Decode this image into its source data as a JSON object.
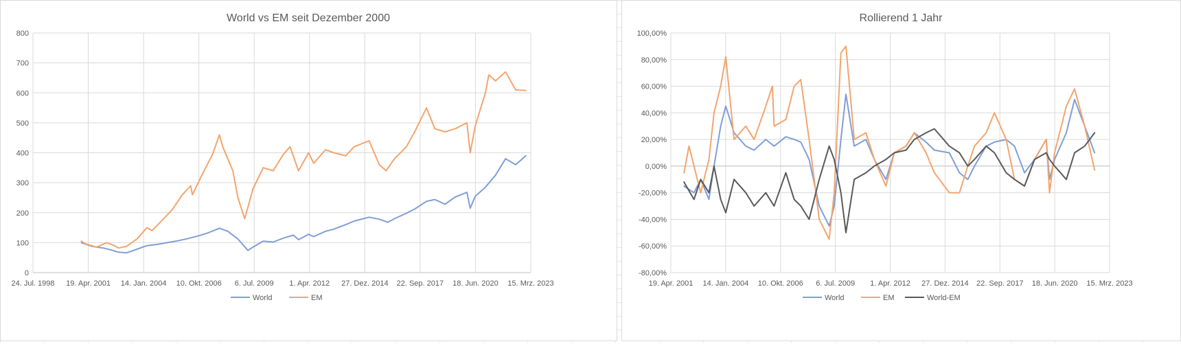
{
  "chart_data": [
    {
      "type": "line",
      "title": "World vs EM seit Dezember 2000",
      "x_tick_labels": [
        "24. Jul. 1998",
        "19. Apr. 2001",
        "14. Jan. 2004",
        "10. Okt. 2006",
        "6. Jul. 2009",
        "1. Apr. 2012",
        "27. Dez. 2014",
        "22. Sep. 2017",
        "18. Jun. 2020",
        "15. Mrz. 2023"
      ],
      "xlim": [
        "1998-07-24",
        "2023-03-15"
      ],
      "y_tick_labels": [
        "0",
        "100",
        "200",
        "300",
        "400",
        "500",
        "600",
        "700",
        "800"
      ],
      "ylim": [
        0,
        800
      ],
      "grid": true,
      "legend_position": "bottom",
      "series": [
        {
          "name": "World",
          "color": "#7f9ed8",
          "x": [
            "2000-12",
            "2001-06",
            "2002-01",
            "2002-06",
            "2002-10",
            "2003-03",
            "2003-09",
            "2004-03",
            "2004-09",
            "2005-03",
            "2005-09",
            "2006-03",
            "2006-09",
            "2007-03",
            "2007-10",
            "2008-03",
            "2008-09",
            "2009-03",
            "2009-06",
            "2009-12",
            "2010-06",
            "2010-12",
            "2011-06",
            "2011-09",
            "2012-03",
            "2012-06",
            "2013-01",
            "2013-06",
            "2014-01",
            "2014-06",
            "2015-03",
            "2015-09",
            "2016-02",
            "2016-06",
            "2017-01",
            "2017-06",
            "2018-01",
            "2018-06",
            "2018-12",
            "2019-06",
            "2020-01",
            "2020-03",
            "2020-06",
            "2020-12",
            "2021-06",
            "2021-12",
            "2022-06",
            "2022-12"
          ],
          "y": [
            100,
            88,
            82,
            75,
            68,
            66,
            78,
            90,
            94,
            100,
            106,
            113,
            122,
            132,
            148,
            138,
            112,
            74,
            85,
            105,
            102,
            115,
            125,
            110,
            128,
            120,
            138,
            145,
            160,
            172,
            185,
            178,
            168,
            180,
            198,
            212,
            238,
            244,
            228,
            252,
            268,
            215,
            255,
            285,
            325,
            380,
            360,
            390
          ]
        },
        {
          "name": "EM",
          "color": "#f4a46c",
          "x": [
            "2000-12",
            "2001-03",
            "2001-09",
            "2002-03",
            "2002-07",
            "2002-10",
            "2003-03",
            "2003-09",
            "2004-03",
            "2004-06",
            "2004-12",
            "2005-06",
            "2005-12",
            "2006-05",
            "2006-06",
            "2006-12",
            "2007-06",
            "2007-10",
            "2007-12",
            "2008-06",
            "2008-09",
            "2009-01",
            "2009-06",
            "2009-12",
            "2010-06",
            "2010-12",
            "2011-04",
            "2011-09",
            "2012-03",
            "2012-06",
            "2013-01",
            "2013-06",
            "2014-01",
            "2014-06",
            "2015-03",
            "2015-09",
            "2016-01",
            "2016-06",
            "2017-01",
            "2017-06",
            "2018-01",
            "2018-06",
            "2018-12",
            "2019-06",
            "2020-01",
            "2020-03",
            "2020-06",
            "2020-12",
            "2021-02",
            "2021-06",
            "2021-12",
            "2022-06",
            "2022-12"
          ],
          "y": [
            105,
            95,
            85,
            100,
            92,
            82,
            88,
            112,
            150,
            140,
            175,
            210,
            260,
            290,
            260,
            330,
            395,
            460,
            420,
            340,
            250,
            180,
            280,
            350,
            340,
            395,
            420,
            340,
            400,
            365,
            410,
            400,
            390,
            420,
            440,
            360,
            340,
            380,
            420,
            470,
            550,
            480,
            470,
            480,
            500,
            400,
            490,
            600,
            660,
            640,
            670,
            610,
            608
          ]
        }
      ]
    },
    {
      "type": "line",
      "title": "Rollierend 1 Jahr",
      "x_tick_labels": [
        "19. Apr. 2001",
        "14. Jan. 2004",
        "10. Okt. 2006",
        "6. Jul. 2009",
        "1. Apr. 2012",
        "27. Dez. 2014",
        "22. Sep. 2017",
        "18. Jun. 2020",
        "15. Mrz. 2023"
      ],
      "xlim": [
        "2001-04-19",
        "2023-03-15"
      ],
      "y_tick_labels": [
        "-80,00%",
        "-60,00%",
        "-40,00%",
        "-20,00%",
        "0,00%",
        "20,00%",
        "40,00%",
        "60,00%",
        "80,00%",
        "100,00%"
      ],
      "ylim": [
        -80,
        100
      ],
      "grid": true,
      "legend_position": "bottom",
      "series": [
        {
          "name": "World",
          "color": "#7f9ed8",
          "x": [
            "2001-12",
            "2002-06",
            "2002-10",
            "2003-03",
            "2003-06",
            "2003-10",
            "2004-01",
            "2004-06",
            "2005-01",
            "2005-06",
            "2006-01",
            "2006-06",
            "2007-01",
            "2007-06",
            "2007-10",
            "2008-03",
            "2008-09",
            "2009-03",
            "2009-06",
            "2009-10",
            "2010-01",
            "2010-06",
            "2011-01",
            "2011-06",
            "2012-01",
            "2012-06",
            "2013-01",
            "2013-06",
            "2014-01",
            "2014-06",
            "2015-03",
            "2015-09",
            "2016-02",
            "2016-06",
            "2017-01",
            "2017-06",
            "2018-01",
            "2018-06",
            "2018-12",
            "2019-06",
            "2020-01",
            "2020-03",
            "2020-06",
            "2021-01",
            "2021-06",
            "2021-12",
            "2022-06"
          ],
          "y": [
            -15,
            -20,
            -10,
            -25,
            0,
            30,
            45,
            25,
            15,
            12,
            20,
            15,
            22,
            20,
            18,
            5,
            -30,
            -45,
            -30,
            20,
            54,
            15,
            20,
            5,
            -10,
            10,
            15,
            25,
            18,
            12,
            10,
            -5,
            -10,
            0,
            15,
            18,
            20,
            15,
            -5,
            5,
            20,
            -10,
            5,
            25,
            50,
            30,
            10
          ]
        },
        {
          "name": "EM",
          "color": "#f4a46c",
          "x": [
            "2001-12",
            "2002-03",
            "2002-06",
            "2002-10",
            "2003-03",
            "2003-06",
            "2003-10",
            "2004-01",
            "2004-06",
            "2005-01",
            "2005-06",
            "2006-01",
            "2006-05",
            "2006-06",
            "2007-01",
            "2007-06",
            "2007-10",
            "2008-03",
            "2008-09",
            "2009-03",
            "2009-06",
            "2009-10",
            "2010-01",
            "2010-06",
            "2011-01",
            "2011-06",
            "2012-01",
            "2012-06",
            "2013-01",
            "2013-06",
            "2014-01",
            "2014-06",
            "2015-03",
            "2015-09",
            "2016-02",
            "2016-06",
            "2017-01",
            "2017-06",
            "2018-01",
            "2018-06",
            "2018-12",
            "2019-06",
            "2020-01",
            "2020-03",
            "2020-06",
            "2021-01",
            "2021-06",
            "2021-12",
            "2022-06"
          ],
          "y": [
            -5,
            15,
            0,
            -20,
            5,
            40,
            60,
            82,
            20,
            30,
            20,
            45,
            60,
            30,
            35,
            60,
            65,
            20,
            -40,
            -55,
            -20,
            85,
            90,
            20,
            25,
            5,
            -15,
            10,
            15,
            25,
            10,
            -5,
            -20,
            -20,
            0,
            15,
            25,
            40,
            20,
            -10,
            -15,
            5,
            20,
            -20,
            10,
            45,
            58,
            30,
            -3
          ]
        },
        {
          "name": "World-EM",
          "color": "#595959",
          "x": [
            "2001-12",
            "2002-06",
            "2002-10",
            "2003-03",
            "2003-06",
            "2003-10",
            "2004-01",
            "2004-06",
            "2005-01",
            "2005-06",
            "2006-01",
            "2006-06",
            "2007-01",
            "2007-06",
            "2007-10",
            "2008-03",
            "2008-09",
            "2009-03",
            "2009-06",
            "2009-10",
            "2010-01",
            "2010-06",
            "2011-01",
            "2011-06",
            "2012-01",
            "2012-06",
            "2013-01",
            "2013-06",
            "2014-01",
            "2014-06",
            "2015-03",
            "2015-09",
            "2016-02",
            "2016-06",
            "2017-01",
            "2017-06",
            "2018-01",
            "2018-06",
            "2018-12",
            "2019-06",
            "2020-01",
            "2020-03",
            "2020-06",
            "2021-01",
            "2021-06",
            "2021-12",
            "2022-06"
          ],
          "y": [
            -12,
            -25,
            -10,
            -20,
            0,
            -25,
            -35,
            -10,
            -20,
            -30,
            -20,
            -30,
            -5,
            -25,
            -30,
            -40,
            -10,
            15,
            5,
            -20,
            -50,
            -10,
            -5,
            0,
            5,
            10,
            12,
            20,
            25,
            28,
            15,
            10,
            0,
            5,
            15,
            10,
            -5,
            -10,
            -15,
            5,
            10,
            5,
            0,
            -10,
            10,
            15,
            25
          ]
        }
      ]
    }
  ]
}
